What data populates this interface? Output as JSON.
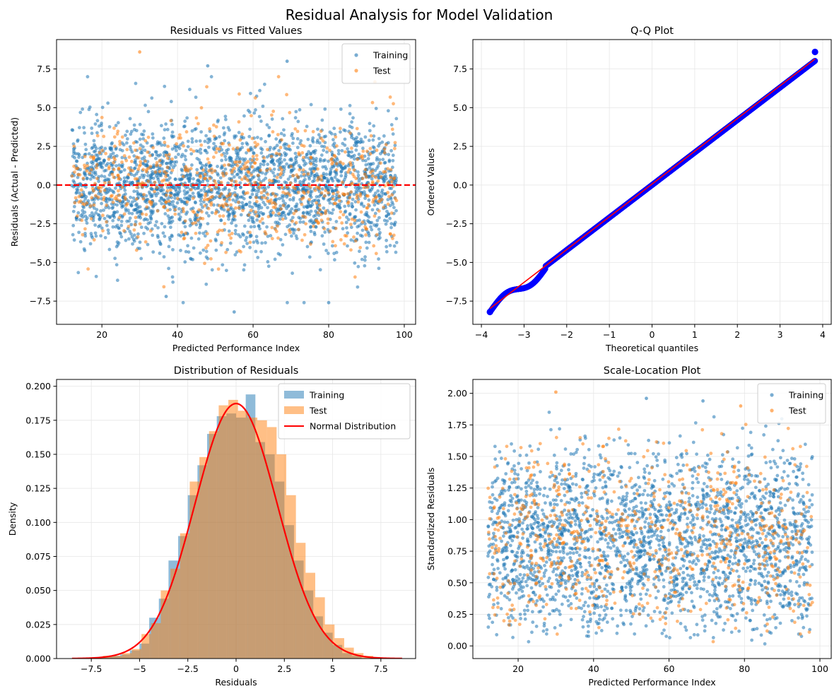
{
  "figure": {
    "title": "Residual Analysis for Model Validation"
  },
  "colors": {
    "training": "#1f77b4",
    "test": "#ff7f0e",
    "reference": "#ff0000",
    "qq_points": "#0000ff",
    "grid": "#e6e6e6"
  },
  "chart_data": [
    {
      "id": "residuals-vs-fitted",
      "type": "scatter",
      "title": "Residuals vs Fitted Values",
      "xlabel": "Predicted Performance Index",
      "ylabel": "Residuals (Actual - Predicted)",
      "xlim": [
        8,
        103
      ],
      "ylim": [
        -9.0,
        9.4
      ],
      "xticks": [
        20,
        40,
        60,
        80,
        100
      ],
      "yticks": [
        -7.5,
        -5.0,
        -2.5,
        0.0,
        2.5,
        5.0,
        7.5
      ],
      "grid": true,
      "legend": "top-right",
      "series": [
        {
          "name": "Training",
          "color": "#1f77b4",
          "n_points": 2400,
          "x_range": [
            12,
            98
          ],
          "y_mean": 0,
          "y_sd": 2.05,
          "extremes": [
            [
              30,
              8.6
            ],
            [
              48,
              7.7
            ],
            [
              69,
              8.0
            ],
            [
              55,
              -8.2
            ],
            [
              37,
              -7.2
            ],
            [
              80,
              -7.6
            ]
          ]
        },
        {
          "name": "Test",
          "color": "#ff7f0e",
          "n_points": 700,
          "x_range": [
            12,
            98
          ],
          "y_mean": 0,
          "y_sd": 2.05
        }
      ],
      "reference_line": {
        "type": "horizontal",
        "y": 0,
        "style": "dashed",
        "color": "#ff0000"
      }
    },
    {
      "id": "qq-plot",
      "type": "scatter",
      "title": "Q-Q Plot",
      "xlabel": "Theoretical quantiles",
      "ylabel": "Ordered Values",
      "xlim": [
        -4.2,
        4.2
      ],
      "ylim": [
        -9.0,
        9.4
      ],
      "xticks": [
        -4,
        -3,
        -2,
        -1,
        0,
        1,
        2,
        3,
        4
      ],
      "yticks": [
        -7.5,
        -5.0,
        -2.5,
        0.0,
        2.5,
        5.0,
        7.5
      ],
      "grid": true,
      "points": {
        "color": "#0000ff",
        "x_range": [
          -3.8,
          3.82
        ],
        "slope": 2.1,
        "intercept": 0.0,
        "endpoints": [
          [
            -3.8,
            -8.2
          ],
          [
            3.82,
            8.6
          ]
        ]
      },
      "fit_line": {
        "x": [
          -3.8,
          3.82
        ],
        "y": [
          -7.98,
          8.15
        ],
        "color": "#ff0000"
      }
    },
    {
      "id": "residual-distribution",
      "type": "bar",
      "title": "Distribution of Residuals",
      "xlabel": "Residuals",
      "ylabel": "Density",
      "xlim": [
        -9.3,
        9.3
      ],
      "ylim": [
        0.0,
        0.205
      ],
      "xticks": [
        -7.5,
        -5.0,
        -2.5,
        0.0,
        2.5,
        5.0,
        7.5
      ],
      "yticks": [
        0.0,
        0.025,
        0.05,
        0.075,
        0.1,
        0.125,
        0.15,
        0.175,
        0.2
      ],
      "grid": true,
      "legend": "top-right",
      "series": [
        {
          "name": "Training",
          "color": "#1f77b4",
          "opacity": 0.5,
          "bins": [
            [
              -7.0,
              -6.5,
              0.001
            ],
            [
              -6.5,
              -6.0,
              0.002
            ],
            [
              -6.0,
              -5.5,
              0.003
            ],
            [
              -5.5,
              -5.0,
              0.006
            ],
            [
              -5.0,
              -4.5,
              0.011
            ],
            [
              -4.5,
              -4.0,
              0.03
            ],
            [
              -4.0,
              -3.5,
              0.044
            ],
            [
              -3.5,
              -3.0,
              0.072
            ],
            [
              -3.0,
              -2.5,
              0.09
            ],
            [
              -2.5,
              -2.0,
              0.12
            ],
            [
              -2.0,
              -1.5,
              0.142
            ],
            [
              -1.5,
              -1.0,
              0.165
            ],
            [
              -1.0,
              -0.5,
              0.178
            ],
            [
              -0.5,
              0.0,
              0.18
            ],
            [
              0.0,
              0.5,
              0.177
            ],
            [
              0.5,
              1.0,
              0.194
            ],
            [
              1.0,
              1.5,
              0.159
            ],
            [
              1.5,
              2.0,
              0.15
            ],
            [
              2.0,
              2.5,
              0.13
            ],
            [
              2.5,
              3.0,
              0.098
            ],
            [
              3.0,
              3.5,
              0.072
            ],
            [
              3.5,
              4.0,
              0.05
            ],
            [
              4.0,
              4.5,
              0.031
            ],
            [
              4.5,
              5.0,
              0.019
            ],
            [
              5.0,
              5.5,
              0.01
            ],
            [
              5.5,
              6.0,
              0.004
            ],
            [
              6.0,
              6.5,
              0.002
            ]
          ]
        },
        {
          "name": "Test",
          "color": "#ff7f0e",
          "opacity": 0.5,
          "bins": [
            [
              -7.4,
              -6.9,
              0.001
            ],
            [
              -6.9,
              -6.4,
              0.002
            ],
            [
              -6.4,
              -5.9,
              0.002
            ],
            [
              -5.9,
              -5.4,
              0.004
            ],
            [
              -5.4,
              -4.9,
              0.007
            ],
            [
              -4.9,
              -4.4,
              0.018
            ],
            [
              -4.4,
              -3.9,
              0.026
            ],
            [
              -3.9,
              -3.4,
              0.05
            ],
            [
              -3.4,
              -2.9,
              0.066
            ],
            [
              -2.9,
              -2.4,
              0.092
            ],
            [
              -2.4,
              -1.9,
              0.13
            ],
            [
              -1.9,
              -1.4,
              0.148
            ],
            [
              -1.4,
              -0.9,
              0.167
            ],
            [
              -0.9,
              -0.4,
              0.186
            ],
            [
              -0.4,
              0.1,
              0.19
            ],
            [
              0.1,
              0.6,
              0.182
            ],
            [
              0.6,
              1.1,
              0.177
            ],
            [
              1.1,
              1.6,
              0.175
            ],
            [
              1.6,
              2.1,
              0.17
            ],
            [
              2.1,
              2.6,
              0.15
            ],
            [
              2.6,
              3.1,
              0.12
            ],
            [
              3.1,
              3.6,
              0.085
            ],
            [
              3.6,
              4.1,
              0.063
            ],
            [
              4.1,
              4.6,
              0.045
            ],
            [
              4.6,
              5.1,
              0.025
            ],
            [
              5.1,
              5.6,
              0.015
            ],
            [
              5.6,
              6.1,
              0.008
            ],
            [
              6.1,
              6.6,
              0.004
            ],
            [
              6.6,
              7.1,
              0.002
            ]
          ]
        }
      ],
      "normal_curve": {
        "name": "Normal Distribution",
        "color": "#ff0000",
        "mean": 0.0,
        "sd": 2.13,
        "x_range": [
          -8.5,
          8.6
        ]
      }
    },
    {
      "id": "scale-location",
      "type": "scatter",
      "title": "Scale-Location Plot",
      "xlabel": "Predicted Performance Index",
      "ylabel": "Standardized Residuals",
      "xlim": [
        8,
        103
      ],
      "ylim": [
        -0.1,
        2.11
      ],
      "xticks": [
        20,
        40,
        60,
        80,
        100
      ],
      "yticks": [
        0.0,
        0.25,
        0.5,
        0.75,
        1.0,
        1.25,
        1.5,
        1.75,
        2.0
      ],
      "grid": true,
      "legend": "top-right",
      "series": [
        {
          "name": "Training",
          "color": "#1f77b4",
          "n_points": 2400,
          "x_range": [
            12,
            98
          ],
          "extremes": [
            [
              54,
              1.96
            ],
            [
              69,
              1.94
            ]
          ]
        },
        {
          "name": "Test",
          "color": "#ff7f0e",
          "n_points": 700,
          "x_range": [
            12,
            98
          ],
          "extremes": [
            [
              30,
              2.01
            ],
            [
              79,
              1.9
            ]
          ]
        }
      ]
    }
  ]
}
